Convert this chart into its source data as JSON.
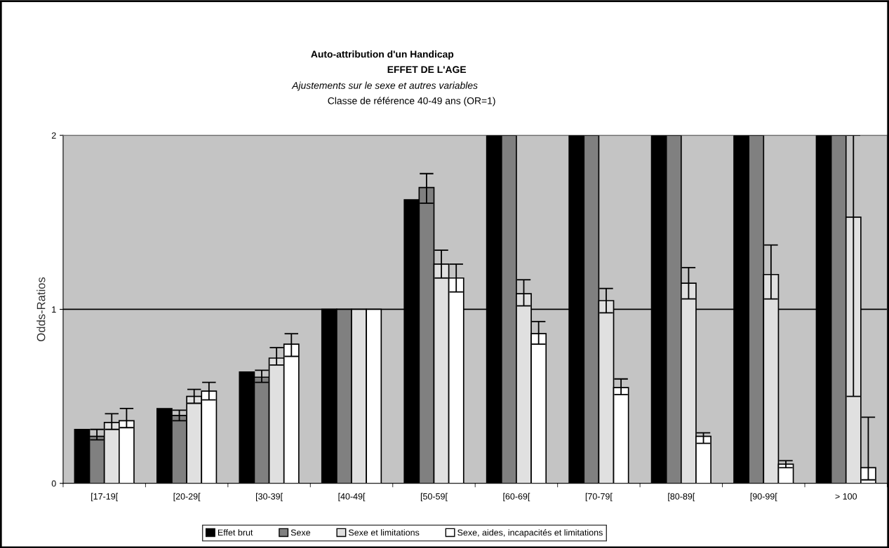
{
  "chart_data": {
    "type": "bar",
    "title": "Auto-attribution d'un Handicap",
    "subtitle": "EFFET DE L'AGE",
    "annotations": [
      "Ajustements sur le sexe et autres variables",
      "Classe de référence 40-49 ans (OR=1)"
    ],
    "ylabel": "Odds-Ratios",
    "categories": [
      "[17-19[",
      "[20-29[",
      "[30-39[",
      "[40-49[",
      "[50-59[",
      "[60-69[",
      "[70-79[",
      "[80-89[",
      "[90-99[",
      "> 100"
    ],
    "series": [
      {
        "name": "Effet brut",
        "color": "#000000",
        "values": [
          0.31,
          0.43,
          0.64,
          1,
          1.63,
          2,
          2,
          2,
          2,
          2
        ]
      },
      {
        "name": "Sexe",
        "color": "#808080",
        "values": [
          0.27,
          0.39,
          0.61,
          1,
          1.7,
          2,
          2,
          2,
          2,
          2
        ],
        "errors": [
          [
            0.25,
            0.31
          ],
          [
            0.36,
            0.42
          ],
          [
            0.58,
            0.65
          ],
          null,
          [
            1.61,
            1.78
          ],
          null,
          null,
          null,
          null,
          null
        ]
      },
      {
        "name": "Sexe et limitations",
        "color": "#e0e0e0",
        "values": [
          0.35,
          0.5,
          0.72,
          1,
          1.26,
          1.09,
          1.05,
          1.15,
          1.2,
          1.53
        ],
        "errors": [
          [
            0.31,
            0.4
          ],
          [
            0.46,
            0.54
          ],
          [
            0.68,
            0.78
          ],
          null,
          [
            1.18,
            1.34
          ],
          [
            1.02,
            1.17
          ],
          [
            0.98,
            1.12
          ],
          [
            1.06,
            1.24
          ],
          [
            1.06,
            1.37
          ],
          [
            0.5,
            2
          ]
        ]
      },
      {
        "name": "Sexe, aides, incapacités et limitations",
        "color": "#ffffff",
        "values": [
          0.36,
          0.53,
          0.8,
          1,
          1.18,
          0.86,
          0.55,
          0.27,
          0.11,
          0.09
        ],
        "errors": [
          [
            0.32,
            0.43
          ],
          [
            0.48,
            0.58
          ],
          [
            0.73,
            0.86
          ],
          null,
          [
            1.1,
            1.26
          ],
          [
            0.8,
            0.93
          ],
          [
            0.51,
            0.6
          ],
          [
            0.23,
            0.29
          ],
          [
            0.09,
            0.13
          ],
          [
            0.02,
            0.38
          ]
        ]
      }
    ],
    "ylim": [
      0,
      2
    ],
    "yticks": [
      0,
      1,
      2
    ],
    "grid": "y",
    "legend": "bottom"
  }
}
